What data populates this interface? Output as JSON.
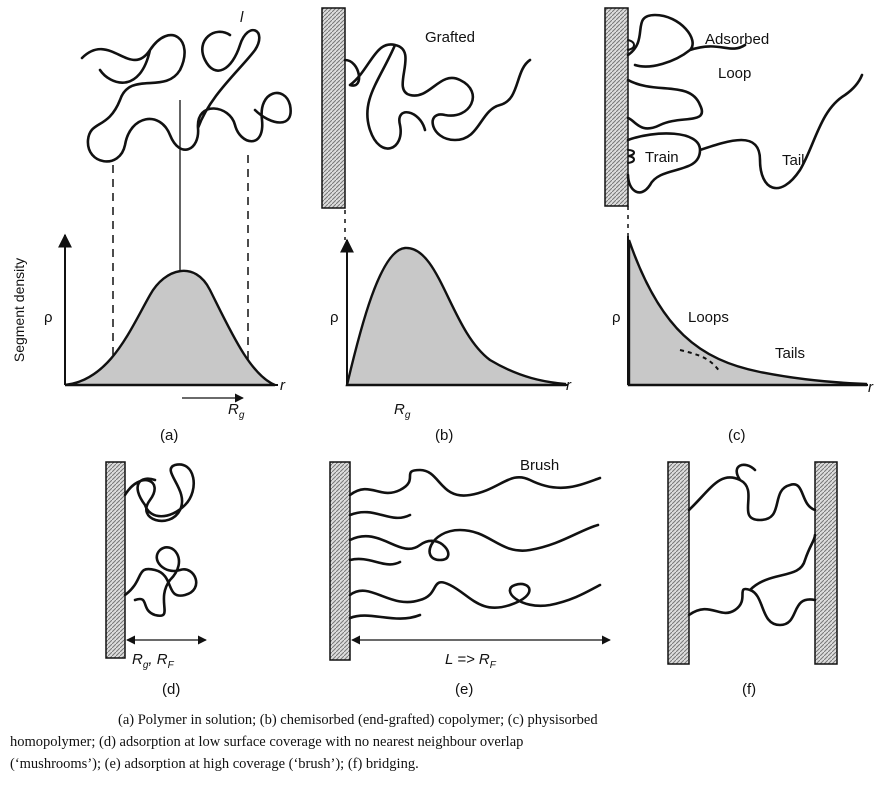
{
  "panels": {
    "a": {
      "label": "(a)",
      "chain_label": "l",
      "y_axis_title": "Segment density",
      "y_symbol": "ρ",
      "x_symbol": "r",
      "radius": {
        "main": "R",
        "sub": "g"
      }
    },
    "b": {
      "label": "(b)",
      "title": "Grafted",
      "y_symbol": "ρ",
      "x_symbol": "r",
      "radius": {
        "main": "R",
        "sub": "g"
      }
    },
    "c": {
      "label": "(c)",
      "title": "Adsorbed",
      "loop": "Loop",
      "train": "Train",
      "tail": "Tail",
      "y_symbol": "ρ",
      "x_symbol": "r",
      "loops": "Loops",
      "tails": "Tails"
    },
    "d": {
      "label": "(d)",
      "span": {
        "r1": "R",
        "s1": "g",
        "sep": ", ",
        "r2": "R",
        "s2": "F"
      }
    },
    "e": {
      "label": "(e)",
      "title": "Brush",
      "span": {
        "main": "L => R",
        "sub": "F"
      }
    },
    "f": {
      "label": "(f)"
    }
  },
  "caption": [
    "(a) Polymer in solution; (b) chemisorbed (end-grafted) copolymer; (c) physisorbed",
    "homopolymer; (d) adsorption at low surface coverage with no nearest neighbour overlap",
    "(‘mushrooms’); (e) adsorption at high coverage (‘brush’); (f) bridging."
  ]
}
